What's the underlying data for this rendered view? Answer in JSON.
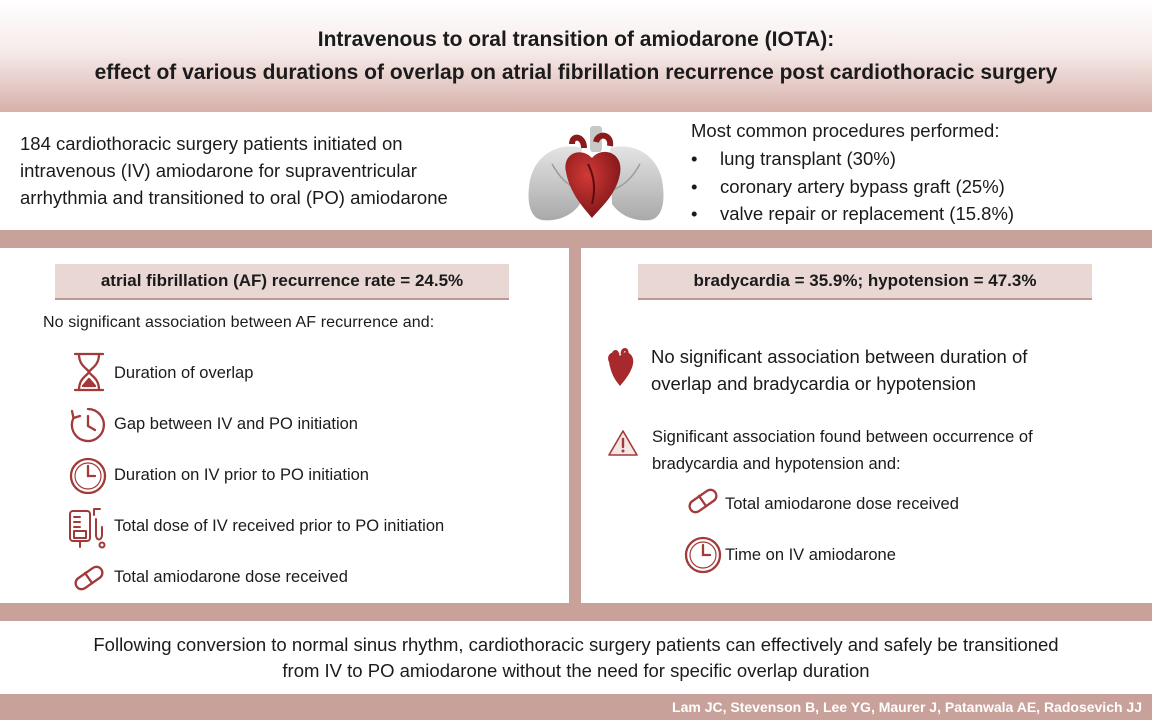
{
  "title": {
    "line1": "Intravenous to oral transition of amiodarone (IOTA):",
    "line2": "effect of various durations of overlap on atrial fibrillation recurrence post cardiothoracic surgery"
  },
  "intro": {
    "lines": [
      "184 cardiothoracic surgery patients initiated on",
      "intravenous (IV) amiodarone for supraventricular",
      "arrhythmia and transitioned to oral (PO) amiodarone"
    ],
    "procedures_title": "Most common procedures performed:",
    "procedures": [
      "lung transplant (30%)",
      "coronary artery bypass graft (25%)",
      "valve repair or replacement (15.8%)"
    ]
  },
  "left": {
    "heading": "atrial fibrillation (AF) recurrence rate = 24.5%",
    "subheading": "No significant association between AF recurrence and:",
    "items": [
      {
        "label": "Duration of overlap",
        "icon": "hourglass-icon"
      },
      {
        "label": "Gap between IV and PO initiation",
        "icon": "clock-arrow-icon"
      },
      {
        "label": "Duration on IV prior to PO initiation",
        "icon": "clock-icon"
      },
      {
        "label": "Total dose of IV received prior to PO initiation",
        "icon": "iv-bag-icon"
      },
      {
        "label": "Total amiodarone dose received",
        "icon": "pill-icon"
      }
    ]
  },
  "right": {
    "heading": "bradycardia = 35.9%; hypotension = 47.3%",
    "no_assoc": [
      "No significant association between duration of",
      "overlap and bradycardia or hypotension"
    ],
    "sig_assoc": [
      "Significant association found between occurrence of",
      "bradycardia and hypotension and:"
    ],
    "items": [
      {
        "label": "Total amiodarone dose received",
        "icon": "pill-icon"
      },
      {
        "label": "Time on IV amiodarone",
        "icon": "clock-icon"
      }
    ]
  },
  "conclusion": {
    "line1": "Following conversion to normal sinus rhythm, cardiothoracic surgery patients can effectively and safely be transitioned",
    "line2": "from IV to PO amiodarone without the need for specific overlap duration"
  },
  "authors": "Lam JC, Stevenson B, Lee YG, Maurer J, Patanwala AE, Radosevich JJ",
  "colors": {
    "accent_band": "#c9a19b",
    "highlight": "#e9d7d4",
    "icon": "#a23a3a"
  }
}
